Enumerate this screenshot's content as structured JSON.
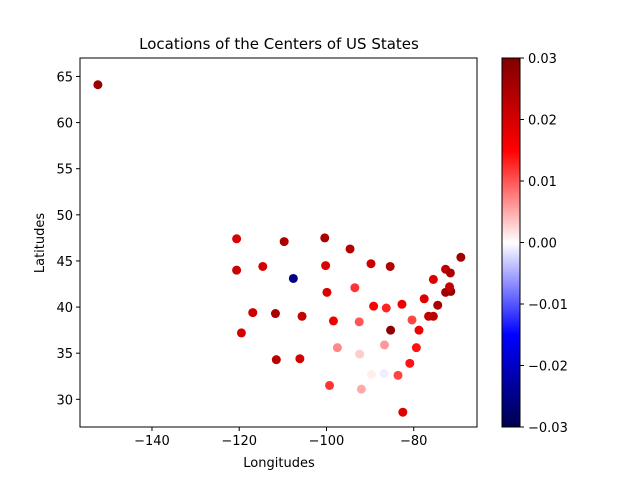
{
  "chart_data": {
    "type": "scatter",
    "title": "Locations of the Centers of US States",
    "xlabel": "Longitudes",
    "ylabel": "Latitudes",
    "xlim": [
      -156.5,
      -65.5
    ],
    "ylim": [
      27.0,
      67.0
    ],
    "x_ticks": [
      {
        "value": -140,
        "label": "−140"
      },
      {
        "value": -120,
        "label": "−120"
      },
      {
        "value": -100,
        "label": "−100"
      },
      {
        "value": -80,
        "label": "−80"
      }
    ],
    "y_ticks": [
      {
        "value": 30,
        "label": "30"
      },
      {
        "value": 35,
        "label": "35"
      },
      {
        "value": 40,
        "label": "40"
      },
      {
        "value": 45,
        "label": "45"
      },
      {
        "value": 50,
        "label": "50"
      },
      {
        "value": 55,
        "label": "55"
      },
      {
        "value": 60,
        "label": "60"
      },
      {
        "value": 65,
        "label": "65"
      }
    ],
    "grid": false,
    "colormap": "seismic",
    "colorbar": {
      "range": [
        -0.03,
        0.03
      ],
      "ticks": [
        {
          "value": 0.03,
          "label": "0.03"
        },
        {
          "value": 0.02,
          "label": "0.02"
        },
        {
          "value": 0.01,
          "label": "0.01"
        },
        {
          "value": 0.0,
          "label": "0.00"
        },
        {
          "value": -0.01,
          "label": "−0.01"
        },
        {
          "value": -0.02,
          "label": "−0.02"
        },
        {
          "value": -0.03,
          "label": "−0.03"
        }
      ]
    },
    "points": [
      {
        "x": -152.4,
        "y": 64.1,
        "c": 0.027
      },
      {
        "x": -120.6,
        "y": 47.4,
        "c": 0.019
      },
      {
        "x": -120.6,
        "y": 44.0,
        "c": 0.021
      },
      {
        "x": -119.5,
        "y": 37.2,
        "c": 0.02
      },
      {
        "x": -116.9,
        "y": 39.4,
        "c": 0.021
      },
      {
        "x": -114.6,
        "y": 44.4,
        "c": 0.02
      },
      {
        "x": -111.7,
        "y": 39.3,
        "c": 0.025
      },
      {
        "x": -111.5,
        "y": 34.3,
        "c": 0.023
      },
      {
        "x": -109.7,
        "y": 47.1,
        "c": 0.025
      },
      {
        "x": -107.6,
        "y": 43.1,
        "c": -0.025
      },
      {
        "x": -105.6,
        "y": 39.0,
        "c": 0.022
      },
      {
        "x": -106.1,
        "y": 34.4,
        "c": 0.02
      },
      {
        "x": -100.4,
        "y": 47.5,
        "c": 0.025
      },
      {
        "x": -100.2,
        "y": 44.5,
        "c": 0.019
      },
      {
        "x": -99.9,
        "y": 41.6,
        "c": 0.019
      },
      {
        "x": -98.4,
        "y": 38.5,
        "c": 0.017
      },
      {
        "x": -97.5,
        "y": 35.6,
        "c": 0.007
      },
      {
        "x": -99.3,
        "y": 31.5,
        "c": 0.012
      },
      {
        "x": -94.6,
        "y": 46.3,
        "c": 0.024
      },
      {
        "x": -93.5,
        "y": 42.1,
        "c": 0.012
      },
      {
        "x": -92.5,
        "y": 38.4,
        "c": 0.01
      },
      {
        "x": -92.4,
        "y": 34.9,
        "c": 0.003
      },
      {
        "x": -92.0,
        "y": 31.1,
        "c": 0.005
      },
      {
        "x": -89.8,
        "y": 44.7,
        "c": 0.021
      },
      {
        "x": -89.2,
        "y": 40.1,
        "c": 0.015
      },
      {
        "x": -89.7,
        "y": 32.7,
        "c": 0.001
      },
      {
        "x": -86.7,
        "y": 35.9,
        "c": 0.006
      },
      {
        "x": -86.8,
        "y": 32.8,
        "c": -0.001
      },
      {
        "x": -86.3,
        "y": 39.9,
        "c": 0.013
      },
      {
        "x": -85.4,
        "y": 44.4,
        "c": 0.024
      },
      {
        "x": -85.3,
        "y": 37.5,
        "c": 0.028
      },
      {
        "x": -82.7,
        "y": 40.3,
        "c": 0.017
      },
      {
        "x": -83.6,
        "y": 32.6,
        "c": 0.011
      },
      {
        "x": -82.5,
        "y": 28.6,
        "c": 0.019
      },
      {
        "x": -80.9,
        "y": 33.9,
        "c": 0.014
      },
      {
        "x": -80.4,
        "y": 38.6,
        "c": 0.011
      },
      {
        "x": -79.4,
        "y": 35.6,
        "c": 0.014
      },
      {
        "x": -78.8,
        "y": 37.5,
        "c": 0.017
      },
      {
        "x": -77.6,
        "y": 40.9,
        "c": 0.019
      },
      {
        "x": -76.6,
        "y": 39.0,
        "c": 0.022
      },
      {
        "x": -75.5,
        "y": 39.0,
        "c": 0.023
      },
      {
        "x": -75.5,
        "y": 43.0,
        "c": 0.019
      },
      {
        "x": -74.5,
        "y": 40.2,
        "c": 0.025
      },
      {
        "x": -72.7,
        "y": 41.6,
        "c": 0.026
      },
      {
        "x": -71.5,
        "y": 41.7,
        "c": 0.027
      },
      {
        "x": -71.8,
        "y": 42.2,
        "c": 0.022
      },
      {
        "x": -72.7,
        "y": 44.1,
        "c": 0.023
      },
      {
        "x": -71.6,
        "y": 43.7,
        "c": 0.025
      },
      {
        "x": -69.2,
        "y": 45.4,
        "c": 0.026
      }
    ]
  }
}
